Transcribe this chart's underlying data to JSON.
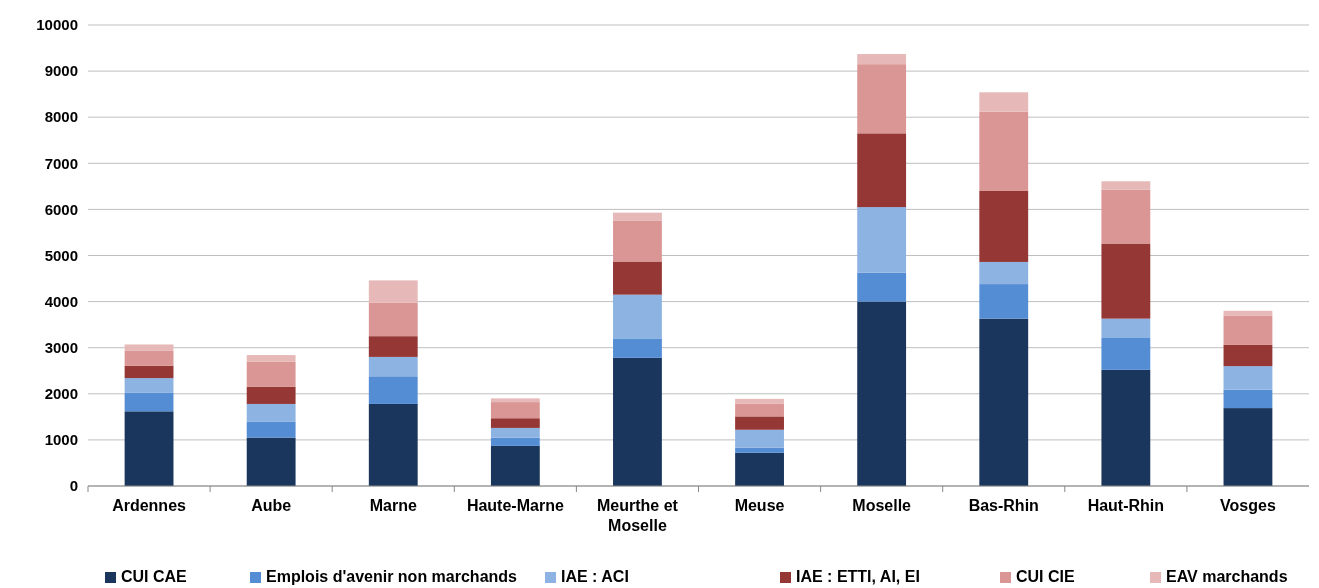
{
  "chart_data": {
    "type": "bar",
    "stacked": true,
    "categories": [
      "Ardennes",
      "Aube",
      "Marne",
      "Haute-Marne",
      "Meurthe et Moselle",
      "Meuse",
      "Moselle",
      "Bas-Rhin",
      "Haut-Rhin",
      "Vosges"
    ],
    "series": [
      {
        "name": "CUI CAE",
        "color": "#1b365d",
        "values": [
          1620,
          1050,
          1780,
          870,
          2780,
          720,
          4000,
          3630,
          2520,
          1690
        ]
      },
      {
        "name": "Emplois d'avenir non marchands",
        "color": "#548dd4",
        "values": [
          400,
          350,
          600,
          180,
          410,
          110,
          630,
          750,
          690,
          400
        ]
      },
      {
        "name": "IAE : ACI",
        "color": "#8db3e2",
        "values": [
          320,
          380,
          420,
          210,
          960,
          390,
          1420,
          480,
          420,
          510
        ]
      },
      {
        "name": "IAE : ETTI, AI, EI",
        "color": "#953735",
        "values": [
          270,
          370,
          450,
          210,
          720,
          290,
          1600,
          1540,
          1630,
          460
        ]
      },
      {
        "name": "CUI CIE",
        "color": "#d99694",
        "values": [
          320,
          550,
          730,
          350,
          880,
          280,
          1500,
          1720,
          1170,
          640
        ]
      },
      {
        "name": "EAV marchands",
        "color": "#e6b9b8",
        "values": [
          140,
          140,
          480,
          80,
          180,
          100,
          220,
          420,
          180,
          100
        ]
      }
    ],
    "ylim": [
      0,
      10000
    ],
    "yticks": [
      0,
      1000,
      2000,
      3000,
      4000,
      5000,
      6000,
      7000,
      8000,
      9000,
      10000
    ],
    "grid": "y",
    "legend": "bottom"
  }
}
